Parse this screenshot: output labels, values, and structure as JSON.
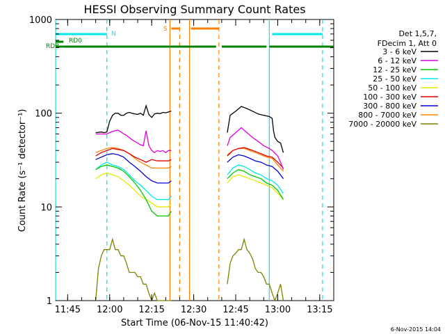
{
  "chart_data": {
    "type": "line",
    "title": "HESSI Observing Summary Count Rates",
    "xlabel": "Start Time (06-Nov-15 11:40:42)",
    "ylabel": "Count Rate (s⁻¹ detector⁻¹)",
    "yscale": "log",
    "ylim": [
      1,
      1000
    ],
    "xlim": [
      "11:40:42",
      "13:20:00"
    ],
    "x_ticks": [
      "11:45",
      "12:00",
      "12:15",
      "12:30",
      "12:45",
      "13:00",
      "13:15"
    ],
    "y_ticks": [
      "1",
      "10",
      "100",
      "1000"
    ],
    "legend_title": [
      "Det 1,5,7,",
      "FDecim 1, Att 0"
    ],
    "legend_position": "right",
    "date_stamp": "6-Nov-2015 14:04",
    "series": [
      {
        "name": "3 - 6 keV",
        "color": "#000000",
        "segments": [
          {
            "x": [
              "11:55:00",
              "11:57:00",
              "11:58:00",
              "11:59:00",
              "12:00:00",
              "12:01:00",
              "12:02:00",
              "12:03:00",
              "12:04:00",
              "12:05:00",
              "12:06:00",
              "12:07:00",
              "12:08:00",
              "12:09:00",
              "12:10:00",
              "12:11:00",
              "12:12:00",
              "12:13:00",
              "12:14:00",
              "12:15:00",
              "12:16:00",
              "12:17:00",
              "12:18:00",
              "12:19:00",
              "12:20:00",
              "12:21:00",
              "12:22:00"
            ],
            "y": [
              62,
              63,
              62,
              63,
              82,
              95,
              100,
              100,
              95,
              95,
              100,
              102,
              100,
              98,
              97,
              100,
              95,
              120,
              97,
              90,
              98,
              100,
              99,
              102,
              101,
              103,
              105
            ]
          },
          {
            "x": [
              "12:42:00",
              "12:43:00",
              "12:45:00",
              "12:47:00",
              "12:49:00",
              "12:51:00",
              "12:53:00",
              "12:55:00",
              "12:57:00",
              "12:58:00",
              "12:58:30",
              "12:59:00",
              "13:00:00",
              "13:01:00",
              "13:02:00"
            ],
            "y": [
              62,
              95,
              105,
              118,
              112,
              105,
              98,
              95,
              92,
              88,
              65,
              55,
              50,
              48,
              38
            ]
          }
        ]
      },
      {
        "name": "6 - 12 keV",
        "color": "#e000e0",
        "segments": [
          {
            "x": [
              "11:55:00",
              "11:57:00",
              "11:58:00",
              "11:59:00",
              "12:00:00",
              "12:01:00",
              "12:02:00",
              "12:03:00",
              "12:04:00",
              "12:05:00",
              "12:06:00",
              "12:07:00",
              "12:08:00",
              "12:09:00",
              "12:10:00",
              "12:11:00",
              "12:12:00",
              "12:13:00",
              "12:14:00",
              "12:15:00",
              "12:16:00",
              "12:17:00",
              "12:18:00",
              "12:19:00",
              "12:20:00",
              "12:21:00",
              "12:22:00"
            ],
            "y": [
              60,
              60,
              60,
              60,
              62,
              64,
              65,
              66,
              63,
              60,
              58,
              55,
              52,
              50,
              48,
              46,
              45,
              65,
              45,
              40,
              38,
              40,
              39,
              40,
              38,
              40,
              40
            ]
          },
          {
            "x": [
              "12:42:00",
              "12:43:00",
              "12:45:00",
              "12:47:00",
              "12:49:00",
              "12:51:00",
              "12:53:00",
              "12:55:00",
              "12:57:00",
              "12:58:00",
              "13:00:00",
              "13:01:00",
              "13:02:00"
            ],
            "y": [
              45,
              55,
              62,
              70,
              62,
              55,
              50,
              45,
              42,
              40,
              35,
              30,
              25
            ]
          }
        ]
      },
      {
        "name": "12 - 25 keV",
        "color": "#00c800",
        "segments": [
          {
            "x": [
              "11:55:00",
              "11:57:00",
              "11:59:00",
              "12:01:00",
              "12:03:00",
              "12:05:00",
              "12:07:00",
              "12:09:00",
              "12:11:00",
              "12:13:00",
              "12:15:00",
              "12:17:00",
              "12:19:00",
              "12:21:00",
              "12:22:00"
            ],
            "y": [
              25,
              27,
              28,
              27,
              26,
              24,
              21,
              18,
              15,
              12,
              9,
              8,
              8,
              8,
              9
            ]
          },
          {
            "x": [
              "12:42:00",
              "12:44:00",
              "12:46:00",
              "12:48:00",
              "12:50:00",
              "12:52:00",
              "12:54:00",
              "12:56:00",
              "12:58:00",
              "13:00:00",
              "13:02:00"
            ],
            "y": [
              20,
              23,
              25,
              24,
              22,
              21,
              20,
              18,
              17,
              15,
              12
            ]
          }
        ]
      },
      {
        "name": "25 - 50 keV",
        "color": "#00e8e8",
        "segments": [
          {
            "x": [
              "11:55:00",
              "11:57:00",
              "11:59:00",
              "12:01:00",
              "12:03:00",
              "12:05:00",
              "12:07:00",
              "12:09:00",
              "12:11:00",
              "12:13:00",
              "12:15:00",
              "12:17:00",
              "12:19:00",
              "12:21:00",
              "12:22:00"
            ],
            "y": [
              25,
              28,
              30,
              28,
              27,
              25,
              22,
              19,
              17,
              15,
              13,
              12,
              12,
              12,
              13
            ]
          },
          {
            "x": [
              "12:42:00",
              "12:44:00",
              "12:46:00",
              "12:48:00",
              "12:50:00",
              "12:52:00",
              "12:54:00",
              "12:56:00",
              "12:58:00",
              "13:00:00",
              "13:02:00"
            ],
            "y": [
              22,
              26,
              28,
              27,
              25,
              23,
              22,
              20,
              19,
              17,
              14
            ]
          }
        ]
      },
      {
        "name": "50 - 100 keV",
        "color": "#e8e800",
        "segments": [
          {
            "x": [
              "11:55:00",
              "11:57:00",
              "11:59:00",
              "12:01:00",
              "12:03:00",
              "12:05:00",
              "12:07:00",
              "12:09:00",
              "12:11:00",
              "12:13:00",
              "12:15:00",
              "12:17:00",
              "12:19:00",
              "12:21:00",
              "12:22:00"
            ],
            "y": [
              20,
              22,
              23,
              22,
              21,
              19,
              17,
              15,
              13,
              12,
              11,
              10,
              10,
              10,
              11
            ]
          },
          {
            "x": [
              "12:42:00",
              "12:44:00",
              "12:46:00",
              "12:48:00",
              "12:50:00",
              "12:52:00",
              "12:54:00",
              "12:56:00",
              "12:58:00",
              "13:00:00",
              "13:02:00"
            ],
            "y": [
              18,
              21,
              22,
              21,
              20,
              19,
              18,
              17,
              16,
              14,
              12
            ]
          }
        ]
      },
      {
        "name": "100 - 300 keV",
        "color": "#e00000",
        "segments": [
          {
            "x": [
              "11:55:00",
              "11:57:00",
              "11:59:00",
              "12:01:00",
              "12:03:00",
              "12:05:00",
              "12:07:00",
              "12:09:00",
              "12:11:00",
              "12:13:00",
              "12:15:00",
              "12:17:00",
              "12:19:00",
              "12:21:00",
              "12:22:00"
            ],
            "y": [
              35,
              38,
              40,
              42,
              41,
              40,
              37,
              34,
              32,
              30,
              32,
              31,
              31,
              31,
              32
            ]
          },
          {
            "x": [
              "12:42:00",
              "12:44:00",
              "12:46:00",
              "12:48:00",
              "12:50:00",
              "12:52:00",
              "12:54:00",
              "12:56:00",
              "12:58:00",
              "13:00:00",
              "13:02:00"
            ],
            "y": [
              35,
              40,
              42,
              43,
              41,
              39,
              37,
              35,
              34,
              30,
              26
            ]
          }
        ]
      },
      {
        "name": "300 - 800 keV",
        "color": "#0000d8",
        "segments": [
          {
            "x": [
              "11:55:00",
              "11:57:00",
              "11:59:00",
              "12:01:00",
              "12:03:00",
              "12:05:00",
              "12:07:00",
              "12:09:00",
              "12:11:00",
              "12:13:00",
              "12:15:00",
              "12:17:00",
              "12:19:00",
              "12:21:00",
              "12:22:00"
            ],
            "y": [
              32,
              34,
              36,
              37,
              36,
              34,
              30,
              27,
              24,
              21,
              19,
              18,
              18,
              18,
              19
            ]
          },
          {
            "x": [
              "12:42:00",
              "12:44:00",
              "12:46:00",
              "12:48:00",
              "12:50:00",
              "12:52:00",
              "12:54:00",
              "12:56:00",
              "12:58:00",
              "13:00:00",
              "13:02:00"
            ],
            "y": [
              30,
              34,
              36,
              35,
              33,
              31,
              30,
              28,
              27,
              24,
              20
            ]
          }
        ]
      },
      {
        "name": "800 - 7000 keV",
        "color": "#ff8000",
        "segments": [
          {
            "x": [
              "11:55:00",
              "11:57:00",
              "11:59:00",
              "12:01:00",
              "12:03:00",
              "12:05:00",
              "12:07:00",
              "12:09:00",
              "12:11:00",
              "12:13:00",
              "12:15:00",
              "12:17:00",
              "12:19:00",
              "12:21:00",
              "12:22:00"
            ],
            "y": [
              38,
              40,
              42,
              43,
              42,
              40,
              37,
              33,
              30,
              28,
              26,
              26,
              26,
              26,
              27
            ]
          },
          {
            "x": [
              "12:42:00",
              "12:44:00",
              "12:46:00",
              "12:48:00",
              "12:50:00",
              "12:52:00",
              "12:54:00",
              "12:56:00",
              "12:58:00",
              "13:00:00",
              "13:02:00"
            ],
            "y": [
              36,
              40,
              42,
              42,
              40,
              38,
              36,
              34,
              33,
              28,
              24
            ]
          }
        ]
      },
      {
        "name": "7000 - 20000 keV",
        "color": "#808000",
        "segments": [
          {
            "x": [
              "11:55:00",
              "11:56:00",
              "11:57:00",
              "11:58:00",
              "11:59:00",
              "12:00:00",
              "12:01:00",
              "12:02:00",
              "12:03:00",
              "12:04:00",
              "12:05:00",
              "12:06:00",
              "12:07:00",
              "12:08:00",
              "12:09:00",
              "12:10:00",
              "12:11:00",
              "12:12:00",
              "12:13:00",
              "12:14:00",
              "12:15:00",
              "12:16:00",
              "12:17:00",
              "12:18:00",
              "12:19:00",
              "12:20:00",
              "12:21:00",
              "12:22:00"
            ],
            "y": [
              1.0,
              2.2,
              3.0,
              3.5,
              3.5,
              3.5,
              4.5,
              3.5,
              3.5,
              3.0,
              3.0,
              2.5,
              2.0,
              2.0,
              2.0,
              1.8,
              1.8,
              1.5,
              1.5,
              1.2,
              1.0,
              1.2,
              1.0,
              1.0,
              1.0,
              1.0,
              1.0,
              1.0
            ]
          },
          {
            "x": [
              "12:42:00",
              "12:43:00",
              "12:44:00",
              "12:45:00",
              "12:46:00",
              "12:47:00",
              "12:48:00",
              "12:49:00",
              "12:50:00",
              "12:51:00",
              "12:52:00",
              "12:53:00",
              "12:54:00",
              "12:55:00",
              "12:56:00",
              "12:57:00",
              "12:58:00",
              "12:59:00",
              "13:00:00",
              "13:01:00",
              "13:02:00"
            ],
            "y": [
              1.5,
              2.5,
              3.0,
              3.2,
              3.5,
              3.5,
              4.5,
              3.5,
              3.2,
              2.8,
              2.2,
              2.0,
              2.0,
              1.8,
              1.5,
              1.5,
              1.2,
              1.0,
              1.2,
              1.5,
              1.0
            ]
          }
        ]
      }
    ],
    "flags": [
      {
        "label": "RDB",
        "color": "#008000",
        "segments": [
          [
            "11:40:42",
            "11:43:00"
          ],
          [
            "11:43:00",
            "12:10:00"
          ],
          [
            "12:10:00",
            "12:38:00"
          ],
          [
            "12:40:00",
            "12:56:00"
          ],
          [
            "12:57:00",
            "13:20:00"
          ]
        ]
      },
      {
        "label": "RD0",
        "color": "#008000",
        "segments": [
          [
            "11:40:42",
            "11:43:30"
          ]
        ]
      },
      {
        "label": "N",
        "color": "#00e8e8",
        "segments": [
          [
            "11:40:42",
            "11:59:00"
          ],
          [
            "12:58:00",
            "13:16:00"
          ]
        ]
      },
      {
        "label": "S",
        "color": "#ff8000",
        "segments": [
          [
            "12:22:00",
            "12:25:00"
          ],
          [
            "12:29:00",
            "12:39:00"
          ]
        ]
      }
    ],
    "vertical_markers": [
      {
        "time": "11:40:42",
        "color": "#00e8e8",
        "style": "solid"
      },
      {
        "time": "11:59:00",
        "color": "#00e8e8",
        "style": "dashed"
      },
      {
        "time": "12:21:30",
        "color": "#ff8000",
        "style": "solid"
      },
      {
        "time": "12:25:00",
        "color": "#ff8000",
        "style": "dashed"
      },
      {
        "time": "12:28:30",
        "color": "#ff8000",
        "style": "solid"
      },
      {
        "time": "12:39:00",
        "color": "#ff8000",
        "style": "dashed"
      },
      {
        "time": "12:57:00",
        "color": "#00e8e8",
        "style": "solid"
      },
      {
        "time": "13:16:00",
        "color": "#00e8e8",
        "style": "dashed"
      }
    ]
  }
}
